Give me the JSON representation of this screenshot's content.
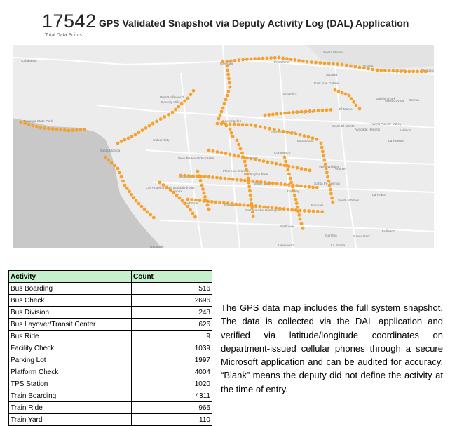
{
  "kpi": {
    "value": "17542",
    "label": "Total Data Points"
  },
  "title": "GPS Validated Snapshot via Deputy Activity Log (DAL) Application",
  "colors": {
    "marker": "#f5a12c",
    "land": "#ececec",
    "ocean": "#c8c8c8",
    "road": "#ffffff",
    "header_fill": "#c6efce"
  },
  "map": {
    "place_labels": [
      "Calabasas",
      "Glendale",
      "Pasadena",
      "Sierra Madre",
      "Arcadia",
      "Duarte",
      "Azusa",
      "Glendora",
      "West Hollywood",
      "Beverly Hills",
      "East San Gabriel",
      "Alhambra",
      "Baldwin Park",
      "West Covina",
      "Covina",
      "Los Angeles",
      "Monterey Park",
      "El Monte",
      "South El Monte",
      "Avocado Heights",
      "Valinda",
      "West Puente Valley",
      "Topanga State Park",
      "Santa Monica",
      "Culver City",
      "East Los Angeles",
      "Montebello",
      "La Puente",
      "View Park-Windsor Hills",
      "Commerce",
      "Maywood",
      "West Whittier",
      "Whittier",
      "Florence-Graham",
      "Huntington Park",
      "Los Angeles International Airport",
      "Inglewood",
      "Lennox",
      "Hawthorne",
      "South Gate",
      "Santa Fe Springs",
      "Downey",
      "Norwalk",
      "South Whittier",
      "La Habra",
      "Willowbrook",
      "East Rancho Dominguez",
      "Bellflower",
      "Cerritos",
      "Buena Park",
      "Fullerton",
      "Redondo",
      "Lakewood",
      "La Palma"
    ]
  },
  "table": {
    "headers": [
      "Activity",
      "Count"
    ],
    "rows": [
      [
        "Bus Boarding",
        "516"
      ],
      [
        "Bus Check",
        "2696"
      ],
      [
        "Bus Division",
        "248"
      ],
      [
        "Bus Layover/Transit Center",
        "626"
      ],
      [
        "Bus Ride",
        "9"
      ],
      [
        "Facility Check",
        "1039"
      ],
      [
        "Parking Lot",
        "1997"
      ],
      [
        "Platform Check",
        "4004"
      ],
      [
        "TPS Station",
        "1020"
      ],
      [
        "Train Boarding",
        "4311"
      ],
      [
        "Train Ride",
        "966"
      ],
      [
        "Train Yard",
        "110"
      ]
    ]
  },
  "description": "The GPS data map includes the full system snapshot. The data is collected via the DAL application and verified via latitude/longitude coordinates on department-issued cellular phones through a secure Microsoft application and can be audited for accuracy. “Blank” means the deputy did not define the activity at the time of entry."
}
